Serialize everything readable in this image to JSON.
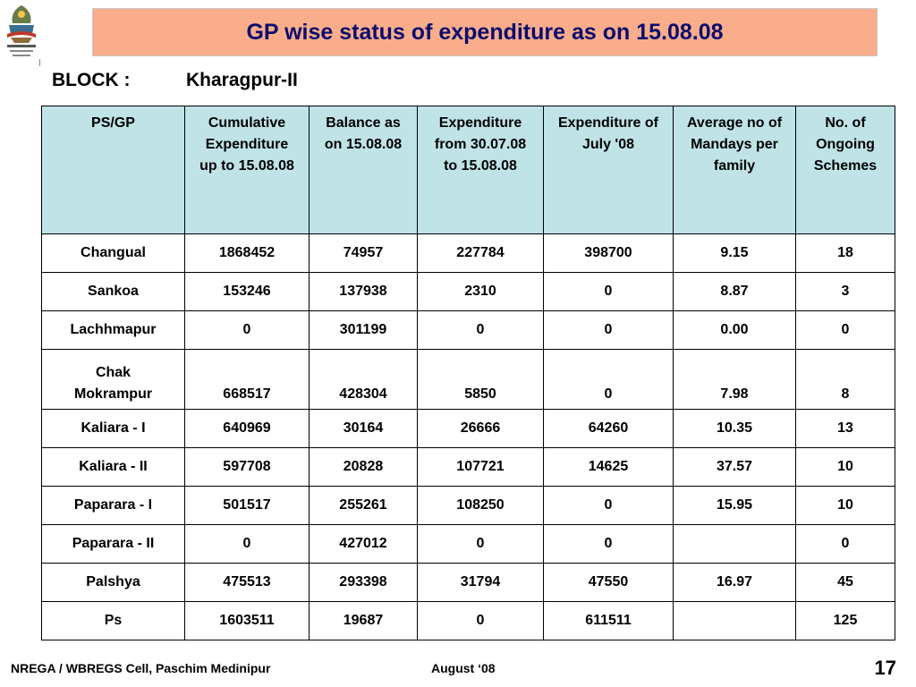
{
  "slide": {
    "title": "GP wise status of expenditure as on 15.08.08",
    "block_label": "BLOCK :",
    "block_value": "Kharagpur-II"
  },
  "colors": {
    "title_bg": "#f9ad8b",
    "title_text": "#0b0b6e",
    "header_bg": "#bfe3e6"
  },
  "table": {
    "headers": [
      "PS/GP",
      "Cumulative Expenditure up to 15.08.08",
      "Balance as on 15.08.08",
      "Expenditure from 30.07.08 to 15.08.08",
      "Expenditure of  July '08",
      "Average no of Mandays per family",
      "No. of Ongoing Schemes"
    ],
    "rows": [
      [
        "Changual",
        "1868452",
        "74957",
        "227784",
        "398700",
        "9.15",
        "18"
      ],
      [
        "Sankoa",
        "153246",
        "137938",
        "2310",
        "0",
        "8.87",
        "3"
      ],
      [
        "Lachhmapur",
        "0",
        "301199",
        "0",
        "0",
        "0.00",
        "0"
      ],
      [
        "Chak Mokrampur",
        "668517",
        "428304",
        "5850",
        "0",
        "7.98",
        "8"
      ],
      [
        "Kaliara - I",
        "640969",
        "30164",
        "26666",
        "64260",
        "10.35",
        "13"
      ],
      [
        "Kaliara - II",
        "597708",
        "20828",
        "107721",
        "14625",
        "37.57",
        "10"
      ],
      [
        "Paparara - I",
        "501517",
        "255261",
        "108250",
        "0",
        "15.95",
        "10"
      ],
      [
        "Paparara - II",
        "0",
        "427012",
        "0",
        "0",
        "",
        "0"
      ],
      [
        "Palshya",
        "475513",
        "293398",
        "31794",
        "47550",
        "16.97",
        "45"
      ],
      [
        "Ps",
        "1603511",
        "19687",
        "0",
        "611511",
        "",
        "125"
      ]
    ]
  },
  "footer": {
    "left": "NREGA / WBREGS Cell, Paschim Medinipur",
    "center": "August ‘08",
    "page_number": "17"
  },
  "logo": {
    "icon": "nrega-emblem-icon"
  }
}
